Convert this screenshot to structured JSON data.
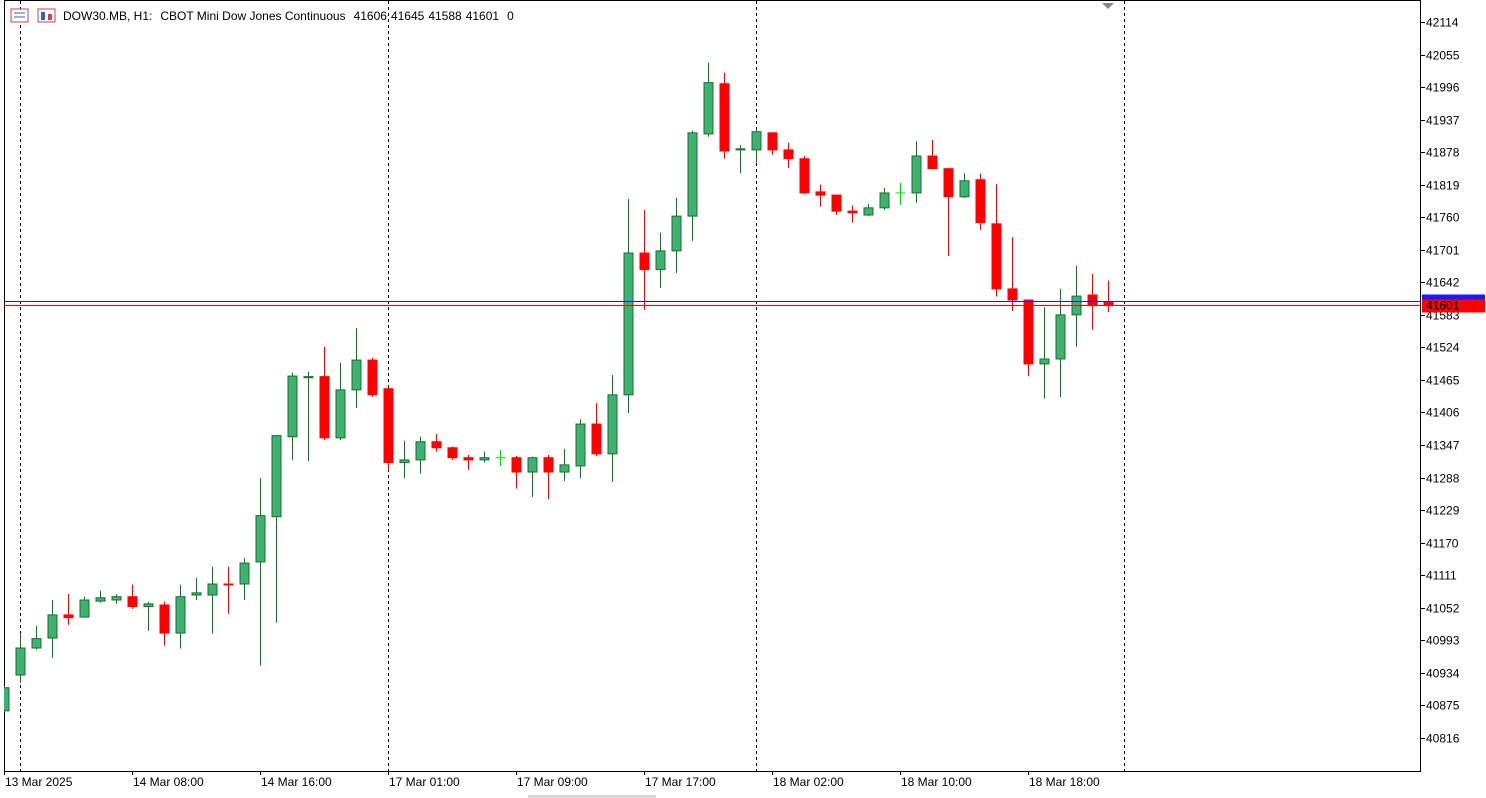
{
  "chart_data": {
    "type": "candlestick",
    "symbol": "DOW30.MB, H1:",
    "description": "CBOT Mini Dow Jones Continuous",
    "volume": 0,
    "categories": [
      "13 Mar 2025",
      null,
      null,
      null,
      null,
      null,
      null,
      null,
      "14 Mar 08:00",
      null,
      null,
      null,
      null,
      null,
      null,
      null,
      "14 Mar 16:00",
      null,
      null,
      null,
      null,
      null,
      null,
      null,
      "17 Mar 01:00",
      null,
      null,
      null,
      null,
      null,
      null,
      null,
      "17 Mar 09:00",
      null,
      null,
      null,
      null,
      null,
      null,
      null,
      "17 Mar 17:00",
      null,
      null,
      null,
      null,
      null,
      null,
      null,
      "18 Mar 02:00",
      null,
      null,
      null,
      null,
      null,
      null,
      null,
      "18 Mar 10:00",
      null,
      null,
      null,
      null,
      null,
      null,
      null,
      "18 Mar 18:00",
      null,
      null,
      null,
      null,
      null
    ],
    "open": [
      40865,
      40930,
      40979,
      40997,
      41039,
      41035,
      41064,
      41066,
      41072,
      41054,
      41057,
      41006,
      41075,
      41075,
      41095,
      41095,
      41135,
      41217,
      41362,
      41469,
      41471,
      41360,
      41447,
      41501,
      41449,
      41315,
      41320,
      41353,
      41342,
      41324,
      41320,
      41324,
      41324,
      41298,
      41324,
      41298,
      41309,
      41385,
      41331,
      41438,
      41695,
      41665,
      41699,
      41762,
      41911,
      42002,
      41882,
      41882,
      41913,
      41882,
      41866,
      41806,
      41800,
      41771,
      41764,
      41777,
      41804,
      41804,
      41871,
      41848,
      41797,
      41828,
      41748,
      41630,
      41610,
      41494,
      41503,
      41583,
      41619,
      41606
    ],
    "high": [
      40910,
      41006,
      41019,
      41066,
      41077,
      41072,
      41083,
      41077,
      41094,
      41063,
      41063,
      41094,
      41106,
      41126,
      41126,
      41142,
      41287,
      41365,
      41478,
      41480,
      41525,
      41496,
      41559,
      41505,
      41451,
      41355,
      41362,
      41367,
      41344,
      41329,
      41335,
      41338,
      41327,
      41326,
      41329,
      41340,
      41394,
      41423,
      41474,
      41793,
      41773,
      41732,
      41795,
      41917,
      42040,
      42022,
      41891,
      41920,
      41913,
      41895,
      41871,
      41819,
      41800,
      41781,
      41784,
      41813,
      41822,
      41898,
      41900,
      41849,
      41840,
      41839,
      41820,
      41724,
      41610,
      41597,
      41630,
      41672,
      41657,
      41645
    ],
    "low": [
      40863,
      40916,
      40976,
      40961,
      41021,
      41034,
      41061,
      41059,
      41050,
      41010,
      40983,
      40978,
      41066,
      41005,
      41041,
      41066,
      40947,
      41025,
      41320,
      41318,
      41356,
      41356,
      41414,
      41434,
      41300,
      41287,
      41295,
      41335,
      41320,
      41302,
      41315,
      41309,
      41268,
      41253,
      41249,
      41282,
      41287,
      41327,
      41280,
      41405,
      41592,
      41632,
      41659,
      41717,
      41906,
      41866,
      41840,
      41859,
      41873,
      41849,
      41802,
      41779,
      41764,
      41750,
      41762,
      41773,
      41782,
      41786,
      41848,
      41690,
      41795,
      41737,
      41616,
      41590,
      41472,
      41431,
      41434,
      41525,
      41556,
      41588
    ],
    "close": [
      40907,
      40979,
      40996,
      41039,
      41034,
      41066,
      41070,
      41072,
      41054,
      41059,
      41006,
      41072,
      41079,
      41095,
      41094,
      41133,
      41219,
      41364,
      41472,
      41471,
      41360,
      41447,
      41501,
      41438,
      41315,
      41320,
      41353,
      41342,
      41324,
      41320,
      41324,
      41324,
      41298,
      41324,
      41298,
      41311,
      41385,
      41331,
      41438,
      41695,
      41665,
      41699,
      41762,
      41913,
      42004,
      41880,
      41884,
      41915,
      41882,
      41866,
      41804,
      41800,
      41771,
      41768,
      41777,
      41804,
      41804,
      41871,
      41848,
      41797,
      41826,
      41750,
      41630,
      41610,
      41494,
      41503,
      41583,
      41617,
      41601,
      41601
    ],
    "ask": 41608,
    "bid": 41601,
    "up_color": "#3cb371",
    "up_line_color": "#1e6b2e",
    "down_color": "#ff0000",
    "doji_color": "#00e000",
    "ask_color": "#1a1aff",
    "bid_color": "#ff0000",
    "ylim": [
      40756,
      42152
    ],
    "yticks": [
      42114,
      42055,
      41996,
      41937,
      41878,
      41819,
      41760,
      41701,
      41642,
      41583,
      41524,
      41465,
      41406,
      41347,
      41288,
      41229,
      41170,
      41111,
      41052,
      40993,
      40934,
      40875,
      40816
    ]
  }
}
